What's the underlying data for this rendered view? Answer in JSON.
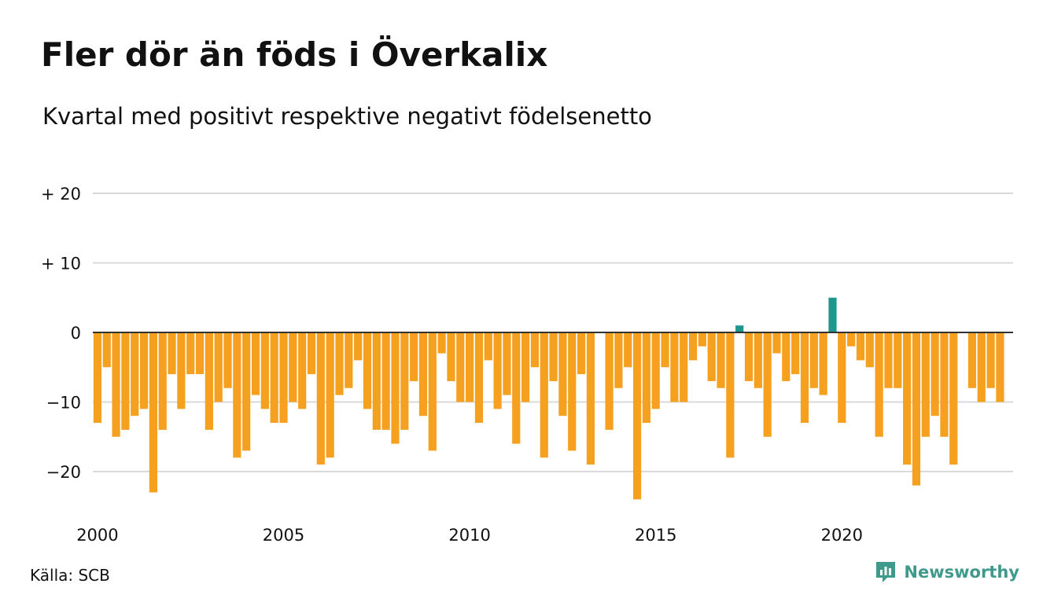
{
  "title": "Fler dör än föds i Överkalix",
  "subtitle": "Kvartal med positivt respektive negativt födelsenetto",
  "source": "Källa: SCB",
  "brand": "Newsworthy",
  "colors": {
    "negative": "#f5a01f",
    "positive": "#1f968b",
    "grid": "#d9d9d9",
    "zero_line": "#333333",
    "brand": "#3f9a8c"
  },
  "icons": {
    "brand_logo": "newsworthy-chat-bar-icon"
  },
  "chart_data": {
    "type": "bar",
    "title": "Fler dör än föds i Överkalix",
    "subtitle": "Kvartal med positivt respektive negativt födelsenetto",
    "xlabel": "",
    "ylabel": "",
    "grid": true,
    "legend": "none",
    "ylim": [
      -26,
      22
    ],
    "y_ticks": [
      {
        "value": 20,
        "label": "+ 20"
      },
      {
        "value": 10,
        "label": "+ 10"
      },
      {
        "value": 0,
        "label": "0"
      },
      {
        "value": -10,
        "label": "−10"
      },
      {
        "value": -20,
        "label": "−20"
      }
    ],
    "x_ticks": [
      {
        "value": 2000,
        "label": "2000"
      },
      {
        "value": 2005,
        "label": "2005"
      },
      {
        "value": 2010,
        "label": "2010"
      },
      {
        "value": 2015,
        "label": "2015"
      },
      {
        "value": 2020,
        "label": "2020"
      }
    ],
    "start_year": 2000,
    "periods_per_year": 4,
    "values": [
      -13,
      -5,
      -15,
      -14,
      -12,
      -11,
      -23,
      -14,
      -6,
      -11,
      -6,
      -6,
      -14,
      -10,
      -8,
      -18,
      -17,
      -9,
      -11,
      -13,
      -13,
      -10,
      -11,
      -6,
      -19,
      -18,
      -9,
      -8,
      -4,
      -11,
      -14,
      -14,
      -16,
      -14,
      -7,
      -12,
      -17,
      -3,
      -7,
      -10,
      -10,
      -13,
      -4,
      -11,
      -9,
      -16,
      -10,
      -5,
      -18,
      -7,
      -12,
      -17,
      -6,
      -19,
      0,
      -14,
      -8,
      -5,
      -24,
      -13,
      -11,
      -5,
      -10,
      -10,
      -4,
      -2,
      -7,
      -8,
      -18,
      1,
      -7,
      -8,
      -15,
      -3,
      -7,
      -6,
      -13,
      -8,
      -9,
      5,
      -13,
      -2,
      -4,
      -5,
      -15,
      -8,
      -8,
      -19,
      -22,
      -15,
      -12,
      -15,
      -19,
      0,
      -8,
      -10,
      -8,
      -10
    ]
  }
}
